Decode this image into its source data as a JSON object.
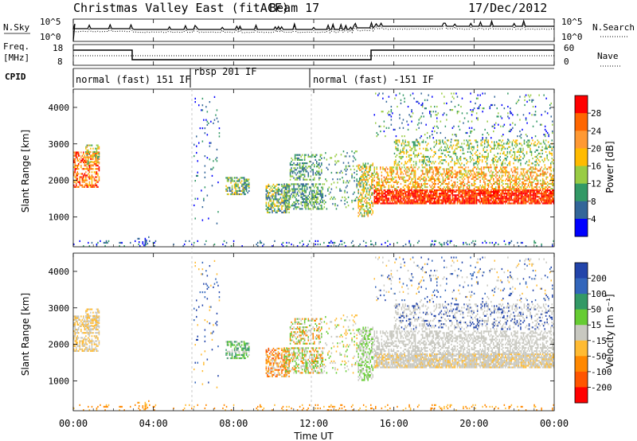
{
  "header": {
    "title": "Christmas Valley East (fitACF)",
    "beam": "Beam 17",
    "date": "17/Dec/2012"
  },
  "panels": {
    "nsky": {
      "label": "N.Sky",
      "right_label": "N.Search",
      "left_ticks": [
        "10^5",
        "10^0"
      ],
      "right_ticks": [
        "10^5",
        "10^0"
      ]
    },
    "freq": {
      "label_line1": "Freq.",
      "label_line2": "[MHz]",
      "right_label": "Nave",
      "left_ticks": [
        "18",
        "8"
      ],
      "right_ticks": [
        "60",
        "0"
      ]
    },
    "cpid": {
      "label": "CPID",
      "segments": [
        {
          "text": "normal (fast) 151 IF",
          "start_h": 0,
          "end_h": 6
        },
        {
          "text": "rbsp 201 IF",
          "start_h": 6,
          "end_h": 12
        },
        {
          "text": "normal (fast) -151 IF",
          "start_h": 12,
          "end_h": 24
        }
      ]
    }
  },
  "chart_data": [
    {
      "type": "heatmap",
      "name": "Power",
      "ylabel": "Slant Range [km]",
      "colorbar_label": "Power [dB]",
      "colorbar_ticks": [
        "28",
        "24",
        "20",
        "16",
        "12",
        "8",
        "4"
      ],
      "colorbar_colors": [
        "#ff0000",
        "#ff6600",
        "#ff9933",
        "#ffbb00",
        "#99cc44",
        "#339966",
        "#336699",
        "#0000ff"
      ],
      "y_ticks": [
        "4000",
        "3000",
        "2000",
        "1000"
      ],
      "ylim": [
        180,
        4500
      ],
      "xlim": [
        0,
        24
      ]
    },
    {
      "type": "heatmap",
      "name": "Velocity",
      "ylabel": "Slant Range [km]",
      "colorbar_label": "Velocity [m s⁻¹]",
      "colorbar_ticks": [
        "200",
        "100",
        "50",
        "15",
        "-15",
        "-50",
        "-100",
        "-200"
      ],
      "colorbar_colors": [
        "#2244aa",
        "#3366bb",
        "#339966",
        "#66cc33",
        "#c8c8c0",
        "#ffbb33",
        "#ff8800",
        "#ff5500",
        "#ff0000"
      ],
      "y_ticks": [
        "4000",
        "3000",
        "2000",
        "1000"
      ],
      "ylim": [
        180,
        4500
      ],
      "xlim": [
        0,
        24
      ]
    }
  ],
  "xaxis": {
    "label": "Time UT",
    "ticks": [
      "00:00",
      "04:00",
      "08:00",
      "12:00",
      "16:00",
      "20:00",
      "00:00"
    ]
  }
}
